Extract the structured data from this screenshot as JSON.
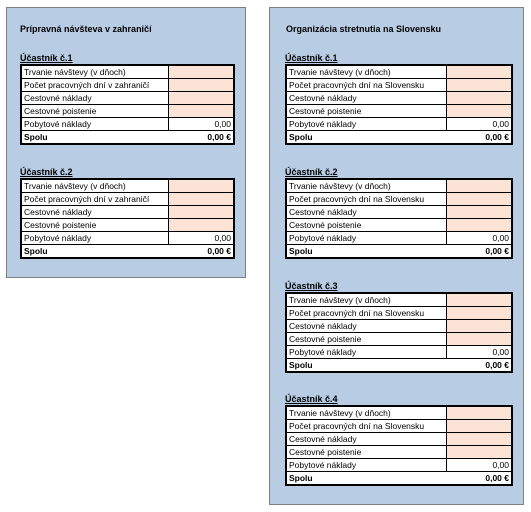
{
  "left_panel": {
    "title": "Prípravná návšteva v zahraničí",
    "groups": [
      {
        "title": "Účastník č.1",
        "rows": [
          {
            "label": "Trvanie návštevy (v dňoch)",
            "value": ""
          },
          {
            "label": "Počet pracovných dní v zahraničí",
            "value": ""
          },
          {
            "label": "Cestovné náklady",
            "value": ""
          },
          {
            "label": "Cestovné poistenie",
            "value": ""
          },
          {
            "label": "Pobytové náklady",
            "value": "0,00"
          }
        ],
        "total_label": "Spolu",
        "total_value": "0,00 €"
      },
      {
        "title": "Účastník č.2",
        "rows": [
          {
            "label": "Trvanie návštevy (v dňoch)",
            "value": ""
          },
          {
            "label": "Počet pracovných dní v zahraničí",
            "value": ""
          },
          {
            "label": "Cestovné náklady",
            "value": ""
          },
          {
            "label": "Cestovné poistenie",
            "value": ""
          },
          {
            "label": "Pobytové náklady",
            "value": "0,00"
          }
        ],
        "total_label": "Spolu",
        "total_value": "0,00 €"
      }
    ]
  },
  "right_panel": {
    "title": "Organizácia stretnutia na Slovensku",
    "groups": [
      {
        "title": "Účastník č.1",
        "rows": [
          {
            "label": "Trvanie návštevy (v dňoch)",
            "value": ""
          },
          {
            "label": "Počet pracovných dní na Slovensku",
            "value": ""
          },
          {
            "label": "Cestovné náklady",
            "value": ""
          },
          {
            "label": "Cestovné poistenie",
            "value": ""
          },
          {
            "label": "Pobytové náklady",
            "value": "0,00"
          }
        ],
        "total_label": "Spolu",
        "total_value": "0,00 €"
      },
      {
        "title": "Účastník č.2",
        "rows": [
          {
            "label": "Trvanie návštevy (v dňoch)",
            "value": ""
          },
          {
            "label": "Počet pracovných dní na Slovensku",
            "value": ""
          },
          {
            "label": "Cestovné náklady",
            "value": ""
          },
          {
            "label": "Cestovné poistenie",
            "value": ""
          },
          {
            "label": "Pobytové náklady",
            "value": "0,00"
          }
        ],
        "total_label": "Spolu",
        "total_value": "0,00 €"
      },
      {
        "title": "Účastník č.3",
        "rows": [
          {
            "label": "Trvanie návštevy (v dňoch)",
            "value": ""
          },
          {
            "label": "Počet pracovných dní na Slovensku",
            "value": ""
          },
          {
            "label": "Cestovné náklady",
            "value": ""
          },
          {
            "label": "Cestovné poistenie",
            "value": ""
          },
          {
            "label": "Pobytové náklady",
            "value": "0,00"
          }
        ],
        "total_label": "Spolu",
        "total_value": "0,00 €"
      },
      {
        "title": "Účastník č.4",
        "rows": [
          {
            "label": "Trvanie návštevy (v dňoch)",
            "value": ""
          },
          {
            "label": "Počet pracovných dní na Slovensku",
            "value": ""
          },
          {
            "label": "Cestovné náklady",
            "value": ""
          },
          {
            "label": "Cestovné poistenie",
            "value": ""
          },
          {
            "label": "Pobytové náklady",
            "value": "0,00"
          }
        ],
        "total_label": "Spolu",
        "total_value": "0,00 €"
      }
    ]
  },
  "colors": {
    "panel_background": "#b8cce4",
    "input_cell": "#fbe4d5",
    "border": "#000000"
  }
}
